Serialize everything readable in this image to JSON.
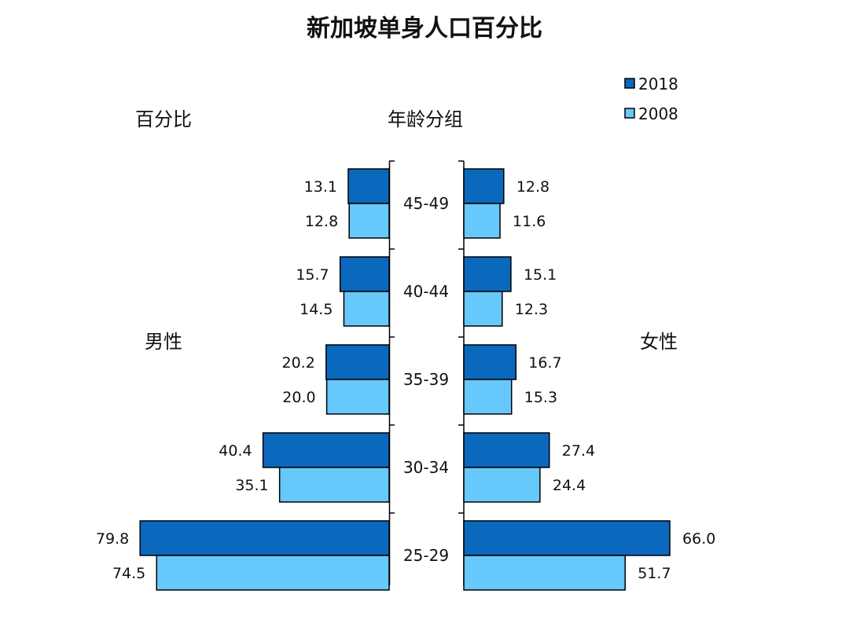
{
  "chart_data": {
    "type": "bar",
    "orientation": "horizontal-butterfly",
    "title": "新加坡单身人口百分比",
    "left_label": "百分比",
    "center_label": "年龄分组",
    "left_group": "男性",
    "right_group": "女性",
    "categories": [
      "45-49",
      "40-44",
      "35-39",
      "30-34",
      "25-29"
    ],
    "series": [
      {
        "name": "2018",
        "color": "#0a68bd",
        "male": [
          13.1,
          15.7,
          20.2,
          40.4,
          79.8
        ],
        "female": [
          12.8,
          15.1,
          16.7,
          27.4,
          66.0
        ]
      },
      {
        "name": "2008",
        "color": "#66c8fb",
        "male": [
          12.8,
          14.5,
          20.0,
          35.1,
          74.5
        ],
        "female": [
          11.6,
          12.3,
          15.3,
          24.4,
          51.7
        ]
      }
    ],
    "legend": "top-right",
    "grid": false
  }
}
